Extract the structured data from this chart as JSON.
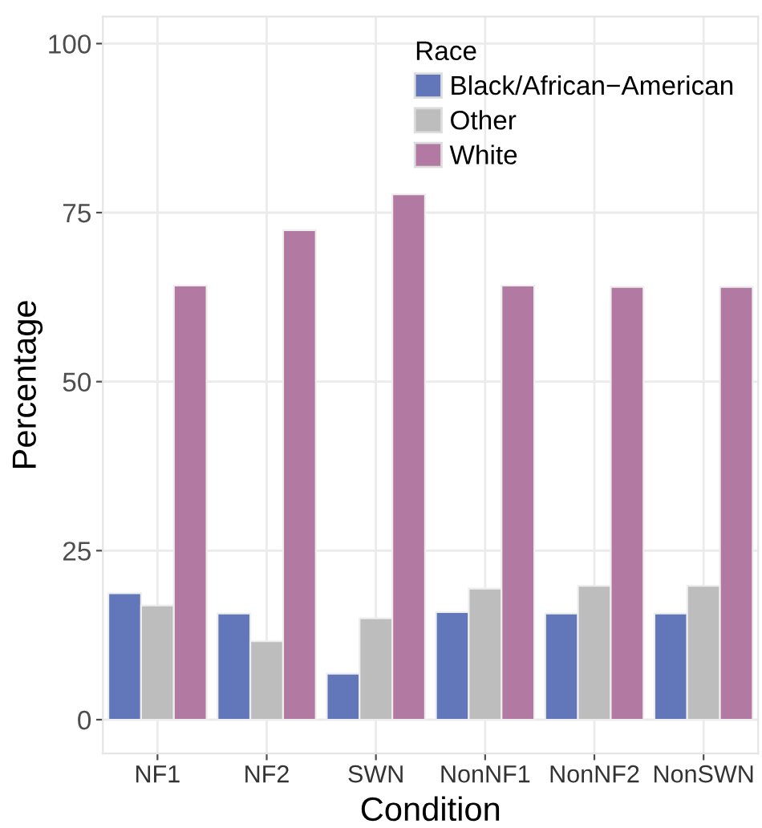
{
  "chart_data": {
    "type": "bar",
    "xlabel": "Condition",
    "ylabel": "Percentage",
    "legend_title": "Race",
    "categories": [
      "NF1",
      "NF2",
      "SWN",
      "NonNF1",
      "NonNF2",
      "NonSWN"
    ],
    "series": [
      {
        "name": "Black/African−American",
        "color": "#6277b9",
        "values": [
          18.7,
          15.7,
          6.8,
          15.9,
          15.7,
          15.7
        ]
      },
      {
        "name": "Other",
        "color": "#bdbdbd",
        "values": [
          16.9,
          11.6,
          15.0,
          19.4,
          19.8,
          19.8
        ]
      },
      {
        "name": "White",
        "color": "#b27aa2",
        "values": [
          64.2,
          72.4,
          77.7,
          64.2,
          64.0,
          64.0
        ]
      }
    ],
    "ylim": [
      -5,
      104
    ],
    "yticks": [
      0,
      25,
      50,
      75,
      100
    ],
    "grid": true,
    "legend": "top"
  }
}
